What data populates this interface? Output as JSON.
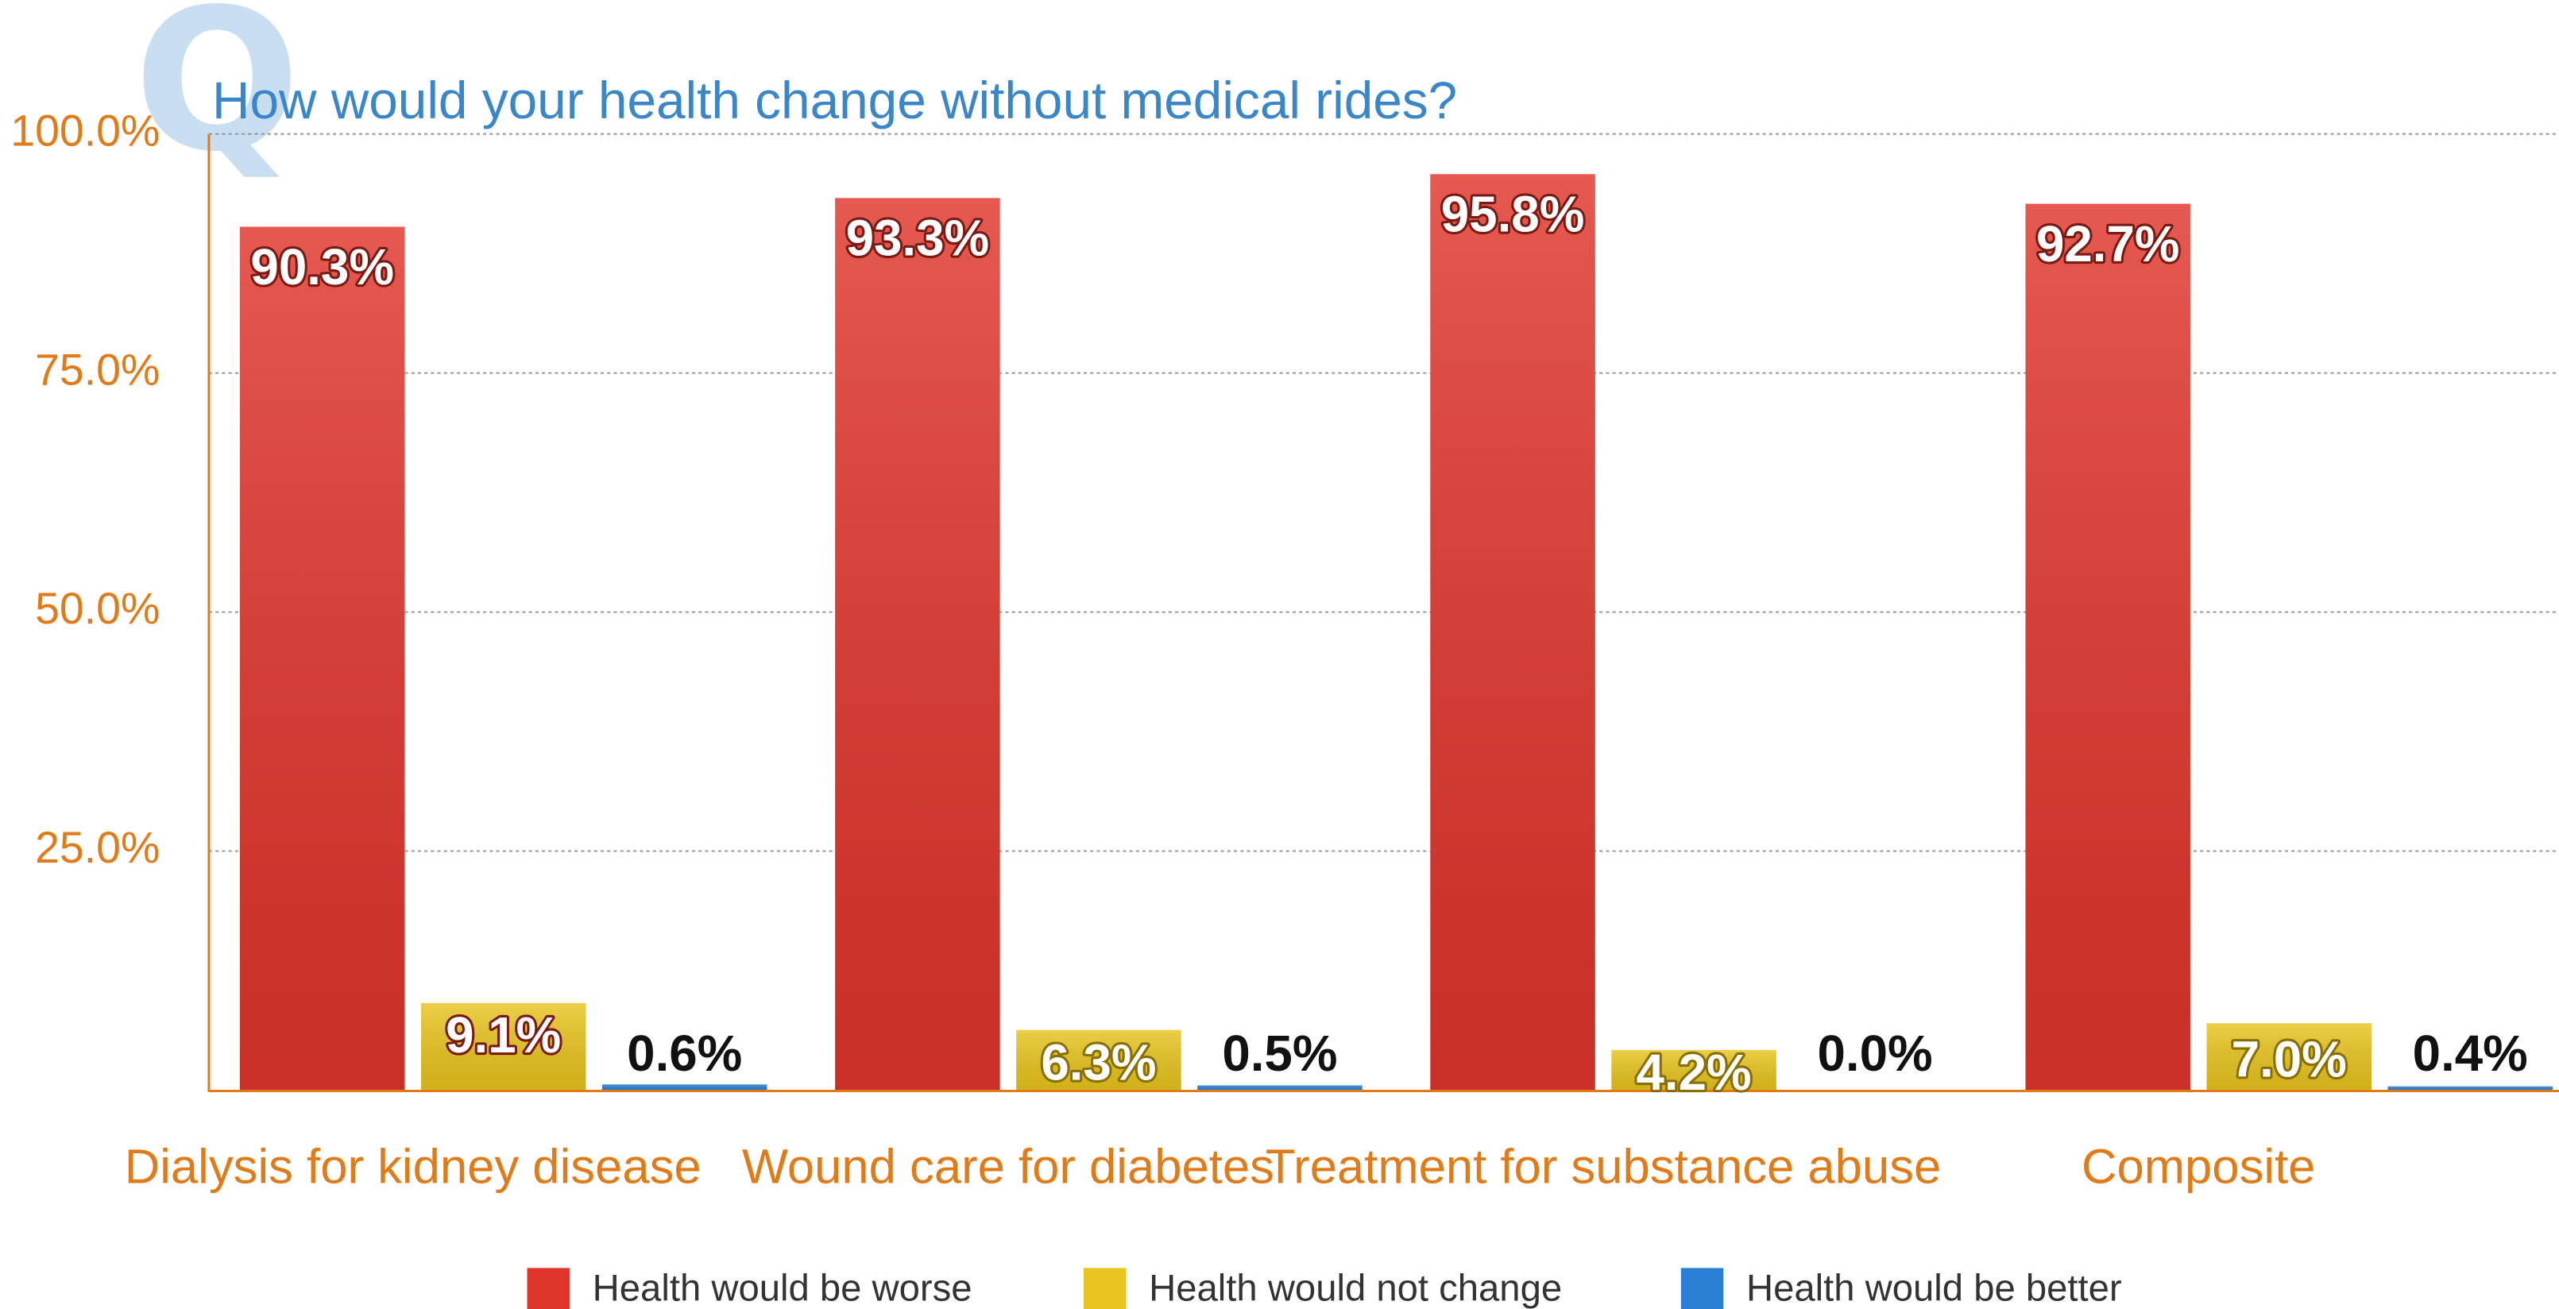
{
  "chart_data": {
    "type": "bar",
    "title": "How would your health change without medical rides?",
    "title_badge": "Q",
    "categories": [
      "Dialysis for kidney disease",
      "Wound care for diabetes",
      "Treatment for substance abuse",
      "Composite"
    ],
    "series": [
      {
        "name": "Health would be worse",
        "color": "#e0352b",
        "values": [
          90.3,
          93.3,
          95.8,
          92.7
        ],
        "value_labels": [
          "90.3%",
          "93.3%",
          "95.8%",
          "92.7%"
        ]
      },
      {
        "name": "Health would not change",
        "color": "#e8c51e",
        "values": [
          9.1,
          6.3,
          4.2,
          7.0
        ],
        "value_labels": [
          "9.1%",
          "6.3%",
          "4.2%",
          "7.0%"
        ]
      },
      {
        "name": "Health would be better",
        "color": "#2a7fd4",
        "values": [
          0.6,
          0.5,
          0.0,
          0.4
        ],
        "value_labels": [
          "0.6%",
          "0.5%",
          "0.0%",
          "0.4%"
        ]
      }
    ],
    "ylim": [
      0,
      100
    ],
    "yticks": [
      {
        "value": 25,
        "label": "25.0%"
      },
      {
        "value": 50,
        "label": "50.0%"
      },
      {
        "value": 75,
        "label": "75.0%"
      },
      {
        "value": 100,
        "label": "100.0%"
      }
    ],
    "grid": true,
    "legend": "bottom"
  }
}
